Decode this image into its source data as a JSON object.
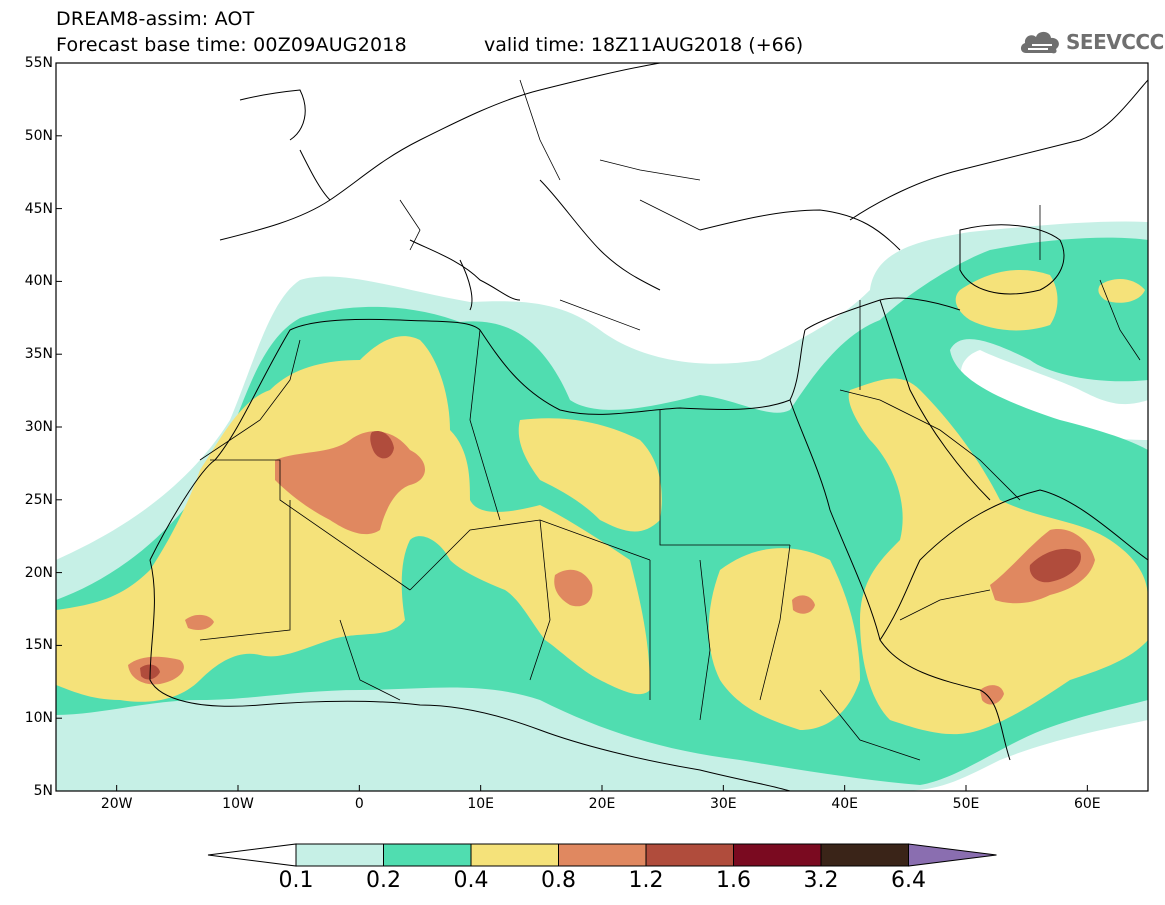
{
  "header": {
    "title": "DREAM8-assim: AOT",
    "forecast": "Forecast base time: 00Z09AUG2018",
    "valid": "valid time: 18Z11AUG2018 (+66)"
  },
  "logo": {
    "text": "SEEVCCC",
    "icon": "cloud-icon"
  },
  "map": {
    "projection": "equirectangular",
    "lon_range": [
      -25,
      65
    ],
    "lat_range": [
      5,
      55
    ],
    "lat_ticks": [
      "55N",
      "50N",
      "45N",
      "40N",
      "35N",
      "30N",
      "25N",
      "20N",
      "15N",
      "10N",
      "5N"
    ],
    "lon_ticks": [
      "20W",
      "10W",
      "0",
      "10E",
      "20E",
      "30E",
      "40E",
      "50E",
      "60E"
    ]
  },
  "legend": {
    "levels": [
      "0.1",
      "0.2",
      "0.4",
      "0.8",
      "1.2",
      "1.6",
      "3.2",
      "6.4"
    ],
    "colors": [
      "#ffffff",
      "#c6f0e6",
      "#50ddb0",
      "#f5e27a",
      "#e08860",
      "#b04c3c",
      "#7a0a20",
      "#3a2418",
      "#8a6eb0"
    ]
  },
  "colors": {
    "c01": "#c6f0e6",
    "c02": "#50ddb0",
    "c04": "#f5e27a",
    "c08": "#e08860",
    "c12": "#b04c3c",
    "border": "#000000"
  }
}
